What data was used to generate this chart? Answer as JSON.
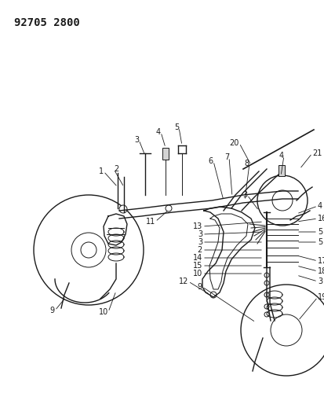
{
  "title_code": "92705 2800",
  "bg_color": "#ffffff",
  "line_color": "#1a1a1a",
  "title_fontsize": 10,
  "label_fontsize": 7,
  "figsize": [
    4.14,
    5.33
  ],
  "dpi": 100
}
